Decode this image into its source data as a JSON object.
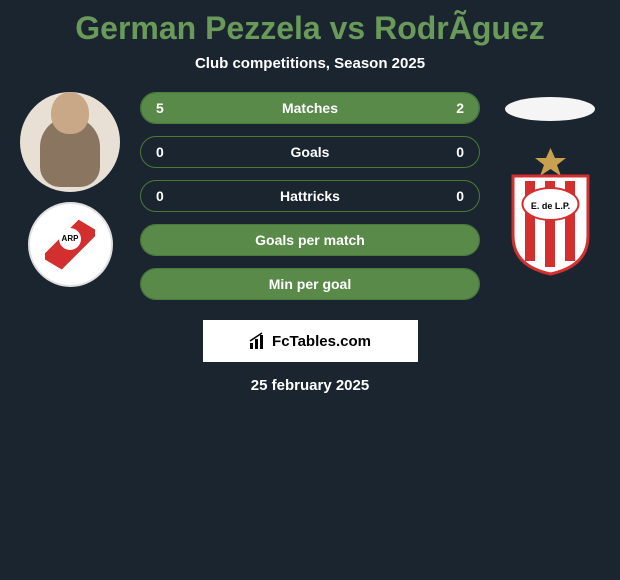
{
  "title": "German Pezzela vs RodrÃ­guez",
  "subtitle": "Club competitions, Season 2025",
  "title_color": "#6a9a5a",
  "date": "25 february 2025",
  "watermark_text": "FcTables.com",
  "player_left": {
    "name": "German Pezzela",
    "club_badge_text": "ARP"
  },
  "player_right": {
    "name": "RodrÃ­guez",
    "club_badge_text": "E. de L.P."
  },
  "stats": [
    {
      "label": "Matches",
      "left_value": "5",
      "right_value": "2",
      "left_pct": 71,
      "right_pct": 29,
      "fill_mode": "split"
    },
    {
      "label": "Goals",
      "left_value": "0",
      "right_value": "0",
      "left_pct": 0,
      "right_pct": 0,
      "fill_mode": "none"
    },
    {
      "label": "Hattricks",
      "left_value": "0",
      "right_value": "0",
      "left_pct": 0,
      "right_pct": 0,
      "fill_mode": "none"
    },
    {
      "label": "Goals per match",
      "left_value": "",
      "right_value": "",
      "left_pct": 100,
      "right_pct": 0,
      "fill_mode": "full"
    },
    {
      "label": "Min per goal",
      "left_value": "",
      "right_value": "",
      "left_pct": 100,
      "right_pct": 0,
      "fill_mode": "full"
    }
  ],
  "colors": {
    "background": "#1a2530",
    "bar_fill": "#5a8a4a",
    "bar_border": "#4a7a3a",
    "text": "#ffffff",
    "title": "#6a9a5a"
  }
}
